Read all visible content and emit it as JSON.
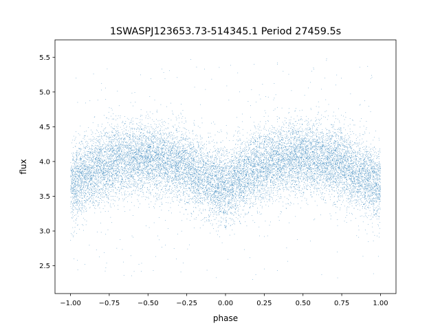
{
  "chart_data": {
    "type": "scatter",
    "title": "1SWASPJ123653.73-514345.1 Period 27459.5s",
    "xlabel": "phase",
    "ylabel": "flux",
    "xlim": [
      -1.1,
      1.1
    ],
    "ylim": [
      2.1,
      5.75
    ],
    "x_ticks": [
      -1.0,
      -0.75,
      -0.5,
      -0.25,
      0.0,
      0.25,
      0.5,
      0.75,
      1.0
    ],
    "x_tick_labels": [
      "−1.00",
      "−0.75",
      "−0.50",
      "−0.25",
      "0.00",
      "0.25",
      "0.50",
      "0.75",
      "1.00"
    ],
    "y_ticks": [
      2.5,
      3.0,
      3.5,
      4.0,
      4.5,
      5.0,
      5.5
    ],
    "y_tick_labels": [
      "2.5",
      "3.0",
      "3.5",
      "4.0",
      "4.5",
      "5.0",
      "5.5"
    ],
    "grid": false,
    "legend": "none",
    "marker_color": "#1f77b4",
    "series": [
      {
        "phase_range": [
          -1.0,
          1.0
        ],
        "point_count": 16000,
        "trend": {
          "phase": [
            -1.0,
            -0.9,
            -0.8,
            -0.7,
            -0.6,
            -0.5,
            -0.4,
            -0.3,
            -0.2,
            -0.1,
            0.0,
            0.1,
            0.2,
            0.3,
            0.4,
            0.5,
            0.6,
            0.7,
            0.8,
            0.9,
            1.0
          ],
          "flux": [
            3.65,
            3.82,
            3.93,
            4.0,
            4.05,
            4.05,
            4.02,
            3.97,
            3.86,
            3.72,
            3.62,
            3.78,
            3.9,
            3.99,
            4.04,
            4.05,
            4.04,
            3.99,
            3.9,
            3.78,
            3.65
          ]
        },
        "scatter_sigma": 0.26,
        "outlier_range": [
          2.3,
          5.5
        ]
      }
    ]
  }
}
